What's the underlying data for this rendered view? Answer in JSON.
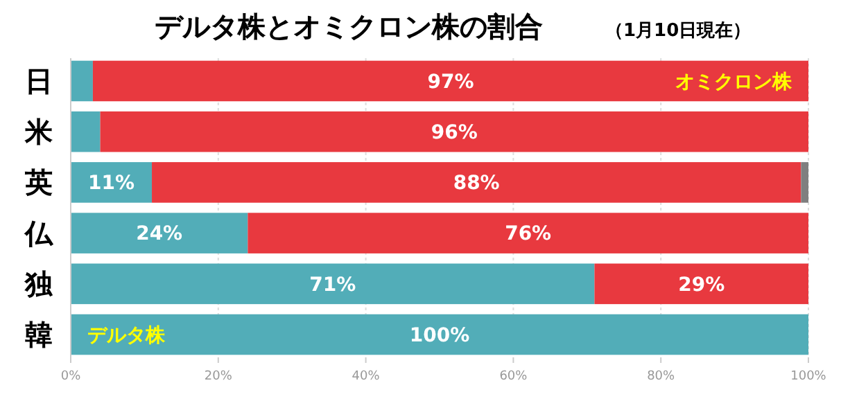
{
  "chart_data": {
    "type": "bar",
    "orientation": "horizontal",
    "stacked": true,
    "title": "デルタ株とオミクロン株の割合",
    "subtitle": "（1月10日現在）",
    "categories": [
      "日",
      "米",
      "英",
      "仏",
      "独",
      "韓"
    ],
    "series": [
      {
        "name": "デルタ株",
        "color": "#52adb8",
        "values": [
          3,
          4,
          11,
          24,
          71,
          100
        ],
        "value_labels": [
          null,
          null,
          "11%",
          "24%",
          "71%",
          "100%"
        ]
      },
      {
        "name": "オミクロン株",
        "color": "#e8393f",
        "values": [
          97,
          96,
          88,
          76,
          29,
          0
        ],
        "value_labels": [
          "97%",
          "96%",
          "88%",
          "76%",
          "29%",
          null
        ]
      },
      {
        "color": "#7f7f7f",
        "values": [
          0,
          0,
          1,
          0,
          0,
          0
        ]
      }
    ],
    "xlim": [
      0,
      100
    ],
    "xticks": [
      {
        "value": 0,
        "label": "0%"
      },
      {
        "value": 20,
        "label": "20%"
      },
      {
        "value": 40,
        "label": "40%"
      },
      {
        "value": 60,
        "label": "60%"
      },
      {
        "value": 80,
        "label": "80%"
      },
      {
        "value": 100,
        "label": "100%"
      }
    ],
    "grid": "x"
  }
}
